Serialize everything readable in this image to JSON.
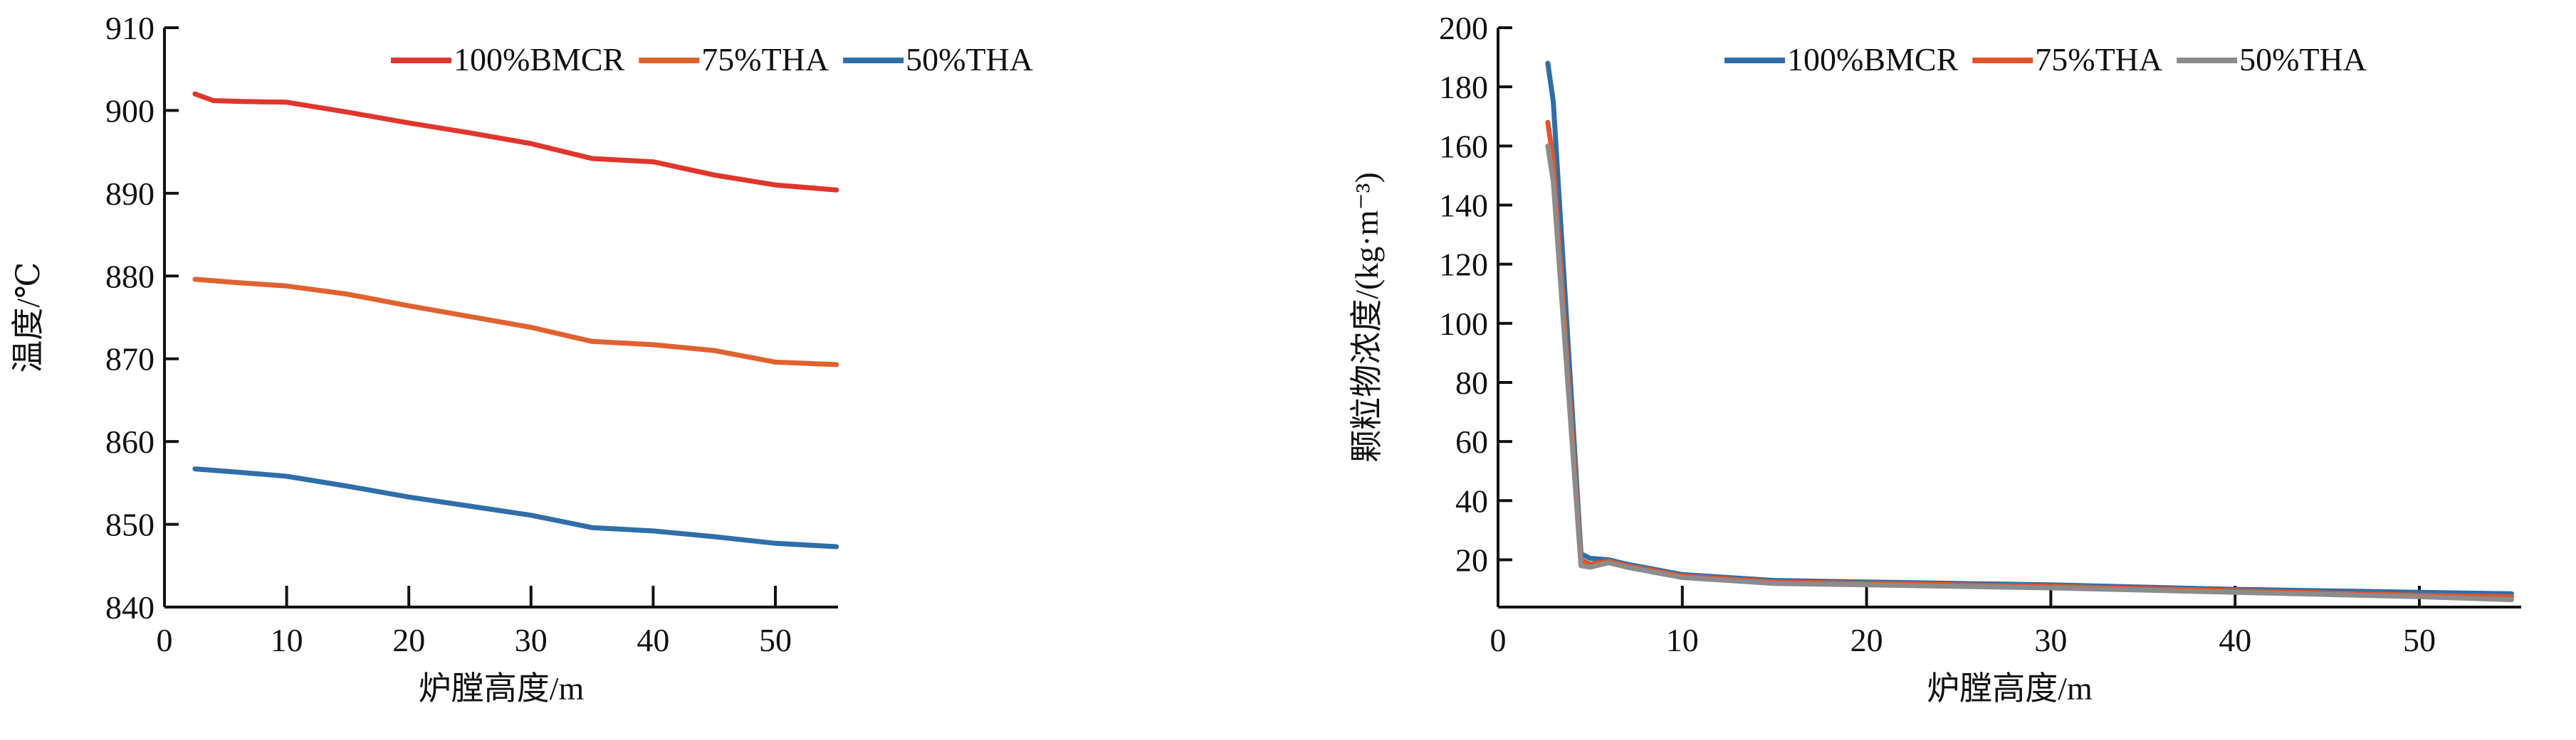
{
  "chart_data": [
    {
      "type": "line",
      "xlabel": "炉膛高度/m",
      "ylabel": "温度/℃",
      "xlim": [
        0,
        55
      ],
      "ylim": [
        840,
        910
      ],
      "xticks": [
        "0",
        "10",
        "20",
        "30",
        "40",
        "50"
      ],
      "yticks": [
        "840",
        "850",
        "860",
        "870",
        "880",
        "890",
        "900",
        "910"
      ],
      "legend_position": "top-right",
      "series": [
        {
          "name": "100%BMCR",
          "color": "#e0362c",
          "x": [
            2.5,
            4,
            6,
            10,
            15,
            20,
            25,
            30,
            35,
            40,
            45,
            50,
            55
          ],
          "y": [
            902,
            901.2,
            901.1,
            901,
            899.8,
            898.5,
            897.3,
            896,
            894.2,
            893.8,
            892.2,
            891,
            890.4
          ]
        },
        {
          "name": "75%THA",
          "color": "#e0622f",
          "x": [
            2.5,
            6,
            10,
            15,
            20,
            25,
            30,
            35,
            40,
            45,
            50,
            55
          ],
          "y": [
            879.6,
            879.2,
            878.8,
            877.8,
            876.4,
            875.1,
            873.8,
            872.1,
            871.7,
            871,
            869.6,
            869.3
          ]
        },
        {
          "name": "50%THA",
          "color": "#2f6ea8",
          "x": [
            2.5,
            6,
            10,
            15,
            20,
            25,
            30,
            35,
            40,
            45,
            50,
            55
          ],
          "y": [
            856.7,
            856.3,
            855.8,
            854.6,
            853.3,
            852.2,
            851.1,
            849.6,
            849.2,
            848.5,
            847.7,
            847.3
          ]
        }
      ]
    },
    {
      "type": "line",
      "xlabel": "炉膛高度/m",
      "ylabel": "颗粒物浓度/(kg·m⁻³)",
      "xlim": [
        0,
        55
      ],
      "ylim": [
        4,
        200
      ],
      "xticks": [
        "0",
        "10",
        "20",
        "30",
        "40",
        "50"
      ],
      "yticks": [
        "20",
        "40",
        "60",
        "80",
        "100",
        "120",
        "140",
        "160",
        "180",
        "200"
      ],
      "legend_position": "top-right",
      "series": [
        {
          "name": "100%BMCR",
          "color": "#2f6ea8",
          "x": [
            2.7,
            3,
            4.5,
            5,
            6,
            7,
            10,
            15,
            20,
            30,
            40,
            50,
            55
          ],
          "y": [
            188,
            175,
            22,
            20.5,
            20,
            18.5,
            15,
            13,
            12.5,
            11.5,
            10,
            9,
            8.5
          ]
        },
        {
          "name": "75%THA",
          "color": "#e0552a",
          "x": [
            2.7,
            3,
            4.5,
            5,
            6,
            7,
            10,
            15,
            20,
            30,
            40,
            50,
            55
          ],
          "y": [
            168,
            155,
            20,
            18.5,
            19.5,
            18,
            14.5,
            12.5,
            12,
            11,
            9.5,
            8,
            7.5
          ]
        },
        {
          "name": "50%THA",
          "color": "#8c8c8c",
          "x": [
            2.7,
            3,
            4.5,
            5,
            6,
            7,
            10,
            15,
            20,
            30,
            40,
            50,
            55
          ],
          "y": [
            160,
            148,
            18,
            17.5,
            19,
            17.5,
            14,
            12,
            11.5,
            10.5,
            9,
            7.5,
            6.5
          ]
        }
      ]
    }
  ]
}
